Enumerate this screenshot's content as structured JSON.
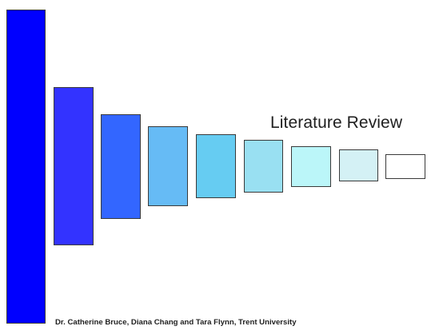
{
  "slide": {
    "title": "Literature Review",
    "footer": "Dr. Catherine Bruce, Diana Chang and Tara Flynn, Trent University"
  },
  "blocks": [
    {
      "color": "#0000ff"
    },
    {
      "color": "#3333ff"
    },
    {
      "color": "#3366ff"
    },
    {
      "color": "#66bbf5"
    },
    {
      "color": "#66ccf2"
    },
    {
      "color": "#99e0f2"
    },
    {
      "color": "#bbf6f9"
    },
    {
      "color": "#d4f1f5"
    },
    {
      "color": "#ffffff"
    }
  ]
}
